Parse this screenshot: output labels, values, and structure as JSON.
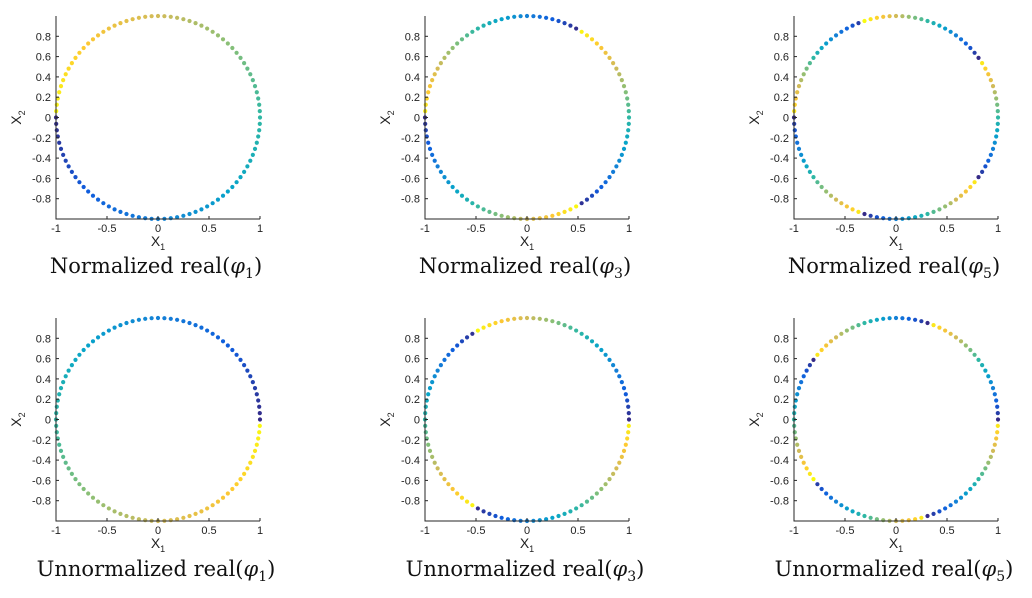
{
  "colors": {
    "colormap": "parula",
    "parula_stops": [
      "#352a87",
      "#0f5cdd",
      "#1481d6",
      "#06a4ca",
      "#2eb7a4",
      "#87bf77",
      "#d1bb59",
      "#fec832",
      "#f9fb0e"
    ]
  },
  "chart_data": [
    {
      "type": "scatter",
      "caption_prefix": "Normalized real(",
      "caption_symbol": "φ",
      "caption_sub": "1",
      "caption_suffix": ")",
      "xlabel_main": "X",
      "xlabel_sub": "1",
      "ylabel_main": "X",
      "ylabel_sub": "2",
      "xlim": [
        -1,
        1
      ],
      "ylim": [
        -1,
        1
      ],
      "xticks": [
        -1,
        -0.5,
        0,
        0.5,
        1
      ],
      "xtick_labels": [
        "-1",
        "-0.5",
        "0",
        "0.5",
        "1"
      ],
      "yticks": [
        0.8,
        0.6,
        0.4,
        0.2,
        0,
        -0.2,
        -0.4,
        -0.6,
        -0.8
      ],
      "ytick_labels": [
        "0.8",
        "0.6",
        "0.4",
        "0.2",
        "0",
        "-0.2",
        "-0.4",
        "-0.6",
        "-0.8"
      ],
      "grid": false,
      "shape": "unit circle",
      "n_points": 100,
      "color_value_formula": "mod(0.5 + 1*theta/(2*pi), 1)"
    },
    {
      "type": "scatter",
      "caption_prefix": "Normalized real(",
      "caption_symbol": "φ",
      "caption_sub": "3",
      "caption_suffix": ")",
      "xlabel_main": "X",
      "xlabel_sub": "1",
      "ylabel_main": "X",
      "ylabel_sub": "2",
      "xlim": [
        -1,
        1
      ],
      "ylim": [
        -1,
        1
      ],
      "xticks": [
        -1,
        -0.5,
        0,
        0.5,
        1
      ],
      "xtick_labels": [
        "-1",
        "-0.5",
        "0",
        "0.5",
        "1"
      ],
      "yticks": [
        0.8,
        0.6,
        0.4,
        0.2,
        0,
        -0.2,
        -0.4,
        -0.6,
        -0.8
      ],
      "ytick_labels": [
        "0.8",
        "0.6",
        "0.4",
        "0.2",
        "0",
        "-0.2",
        "-0.4",
        "-0.6",
        "-0.8"
      ],
      "grid": false,
      "shape": "unit circle",
      "n_points": 100,
      "color_value_formula": "mod(0.5 + 3*theta/(2*pi), 1)"
    },
    {
      "type": "scatter",
      "caption_prefix": "Normalized real(",
      "caption_symbol": "φ",
      "caption_sub": "5",
      "caption_suffix": ")",
      "xlabel_main": "X",
      "xlabel_sub": "1",
      "ylabel_main": "X",
      "ylabel_sub": "2",
      "xlim": [
        -1,
        1
      ],
      "ylim": [
        -1,
        1
      ],
      "xticks": [
        -1,
        -0.5,
        0,
        0.5,
        1
      ],
      "xtick_labels": [
        "-1",
        "-0.5",
        "0",
        "0.5",
        "1"
      ],
      "yticks": [
        0.8,
        0.6,
        0.4,
        0.2,
        0,
        -0.2,
        -0.4,
        -0.6,
        -0.8
      ],
      "ytick_labels": [
        "0.8",
        "0.6",
        "0.4",
        "0.2",
        "0",
        "-0.2",
        "-0.4",
        "-0.6",
        "-0.8"
      ],
      "grid": false,
      "shape": "unit circle",
      "n_points": 100,
      "color_value_formula": "mod(0.5 + 5*theta/(2*pi), 1)"
    },
    {
      "type": "scatter",
      "caption_prefix": "Unnormalized real(",
      "caption_symbol": "φ",
      "caption_sub": "1",
      "caption_suffix": ")",
      "xlabel_main": "X",
      "xlabel_sub": "1",
      "ylabel_main": "X",
      "ylabel_sub": "2",
      "xlim": [
        -1,
        1
      ],
      "ylim": [
        -1,
        1
      ],
      "xticks": [
        -1,
        -0.5,
        0,
        0.5,
        1
      ],
      "xtick_labels": [
        "-1",
        "-0.5",
        "0",
        "0.5",
        "1"
      ],
      "yticks": [
        0.8,
        0.6,
        0.4,
        0.2,
        0,
        -0.2,
        -0.4,
        -0.6,
        -0.8
      ],
      "ytick_labels": [
        "0.8",
        "0.6",
        "0.4",
        "0.2",
        "0",
        "-0.2",
        "-0.4",
        "-0.6",
        "-0.8"
      ],
      "grid": false,
      "shape": "unit circle",
      "n_points": 100,
      "color_value_formula": "mod(1*theta/(2*pi), 1)"
    },
    {
      "type": "scatter",
      "caption_prefix": "Unnormalized real(",
      "caption_symbol": "φ",
      "caption_sub": "3",
      "caption_suffix": ")",
      "xlabel_main": "X",
      "xlabel_sub": "1",
      "ylabel_main": "X",
      "ylabel_sub": "2",
      "xlim": [
        -1,
        1
      ],
      "ylim": [
        -1,
        1
      ],
      "xticks": [
        -1,
        -0.5,
        0,
        0.5,
        1
      ],
      "xtick_labels": [
        "-1",
        "-0.5",
        "0",
        "0.5",
        "1"
      ],
      "yticks": [
        0.8,
        0.6,
        0.4,
        0.2,
        0,
        -0.2,
        -0.4,
        -0.6,
        -0.8
      ],
      "ytick_labels": [
        "0.8",
        "0.6",
        "0.4",
        "0.2",
        "0",
        "-0.2",
        "-0.4",
        "-0.6",
        "-0.8"
      ],
      "grid": false,
      "shape": "unit circle",
      "n_points": 100,
      "color_value_formula": "mod(3*theta/(2*pi), 1)"
    },
    {
      "type": "scatter",
      "caption_prefix": "Unnormalized real(",
      "caption_symbol": "φ",
      "caption_sub": "5",
      "caption_suffix": ")",
      "xlabel_main": "X",
      "xlabel_sub": "1",
      "ylabel_main": "X",
      "ylabel_sub": "2",
      "xlim": [
        -1,
        1
      ],
      "ylim": [
        -1,
        1
      ],
      "xticks": [
        -1,
        -0.5,
        0,
        0.5,
        1
      ],
      "xtick_labels": [
        "-1",
        "-0.5",
        "0",
        "0.5",
        "1"
      ],
      "yticks": [
        0.8,
        0.6,
        0.4,
        0.2,
        0,
        -0.2,
        -0.4,
        -0.6,
        -0.8
      ],
      "ytick_labels": [
        "0.8",
        "0.6",
        "0.4",
        "0.2",
        "0",
        "-0.2",
        "-0.4",
        "-0.6",
        "-0.8"
      ],
      "grid": false,
      "shape": "unit circle",
      "n_points": 100,
      "color_value_formula": "mod(5*theta/(2*pi), 1)"
    }
  ]
}
